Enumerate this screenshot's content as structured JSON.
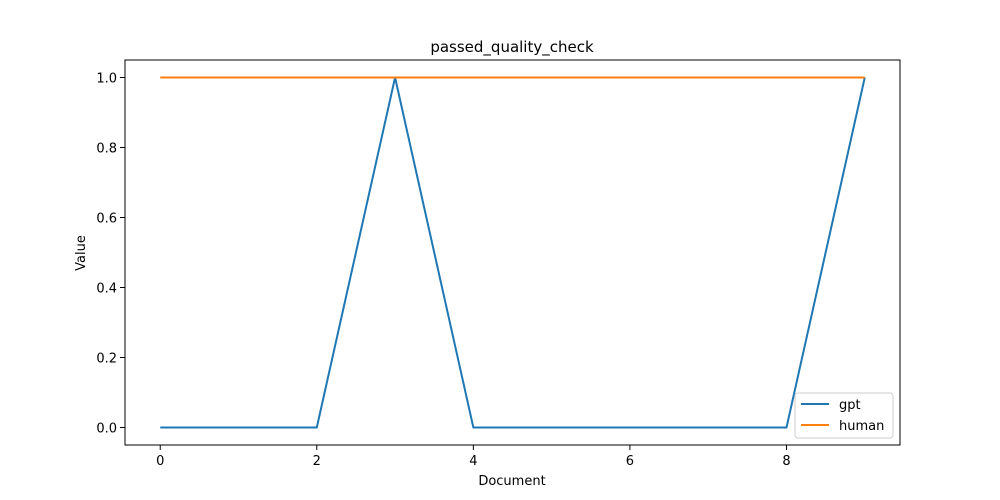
{
  "chart_data": {
    "type": "line",
    "title": "passed_quality_check",
    "xlabel": "Document",
    "ylabel": "Value",
    "x": [
      0,
      1,
      2,
      3,
      4,
      5,
      6,
      7,
      8,
      9
    ],
    "xlim": [
      -0.45,
      9.45
    ],
    "ylim": [
      -0.05,
      1.05
    ],
    "x_ticks": [
      0,
      2,
      4,
      6,
      8
    ],
    "x_tick_labels": [
      "0",
      "2",
      "4",
      "6",
      "8"
    ],
    "y_ticks": [
      0.0,
      0.2,
      0.4,
      0.6,
      0.8,
      1.0
    ],
    "y_tick_labels": [
      "0.0",
      "0.2",
      "0.4",
      "0.6",
      "0.8",
      "1.0"
    ],
    "grid": false,
    "legend_position": "lower right",
    "series": [
      {
        "name": "gpt",
        "color": "#1f77b4",
        "values": [
          0,
          0,
          0,
          1,
          0,
          0,
          0,
          0,
          0,
          1
        ]
      },
      {
        "name": "human",
        "color": "#ff7f0e",
        "values": [
          1,
          1,
          1,
          1,
          1,
          1,
          1,
          1,
          1,
          1
        ]
      }
    ]
  }
}
